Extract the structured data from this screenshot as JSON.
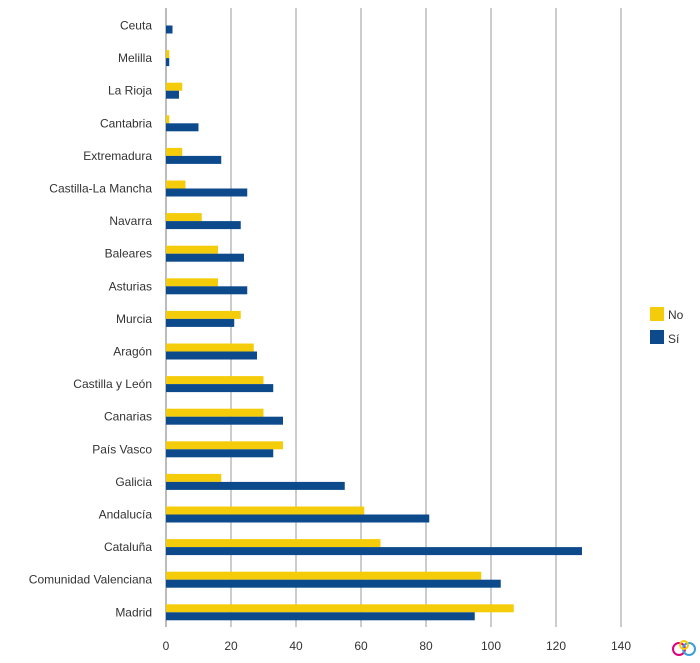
{
  "chart_data": {
    "type": "bar",
    "orientation": "horizontal",
    "categories": [
      "Ceuta",
      "Melilla",
      "La Rioja",
      "Cantabria",
      "Extremadura",
      "Castilla-La Mancha",
      "Navarra",
      "Baleares",
      "Asturias",
      "Murcia",
      "Aragón",
      "Castilla y León",
      "Canarias",
      "País Vasco",
      "Galicia",
      "Andalucía",
      "Cataluña",
      "Comunidad Valenciana",
      "Madrid"
    ],
    "series": [
      {
        "name": "No",
        "color": "#f5cc0a",
        "values": [
          0,
          1,
          5,
          1,
          5,
          6,
          11,
          16,
          16,
          23,
          27,
          30,
          30,
          36,
          17,
          61,
          66,
          97,
          107
        ]
      },
      {
        "name": "Sí",
        "color": "#0d4a8c",
        "values": [
          2,
          1,
          4,
          10,
          17,
          25,
          23,
          24,
          25,
          21,
          28,
          33,
          36,
          33,
          55,
          81,
          128,
          103,
          95
        ]
      }
    ],
    "xticks": [
      0,
      20,
      40,
      60,
      80,
      100,
      120,
      140
    ],
    "xlim": [
      0,
      140
    ],
    "grid": true,
    "legend_position": "right"
  }
}
